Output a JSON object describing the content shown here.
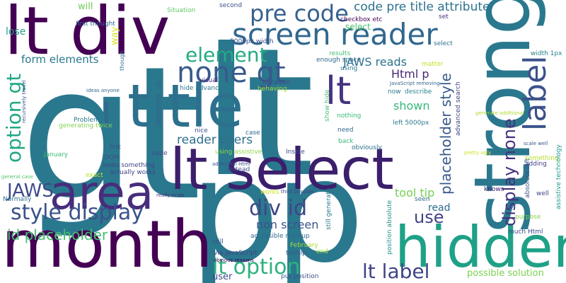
{
  "words": [
    {
      "text": "gt",
      "color": "#2a788e"
    },
    {
      "text": "lt",
      "color": "#2a788e"
    },
    {
      "text": "p",
      "color": "#2a788e"
    },
    {
      "text": "p",
      "color": "#2a788e"
    },
    {
      "text": "lt div",
      "color": "#440154"
    },
    {
      "text": "strong",
      "color": "#2a788e"
    },
    {
      "text": "title",
      "color": "#2d708e"
    },
    {
      "text": "lt select",
      "color": "#3b1f6b"
    },
    {
      "text": "month",
      "color": "#440154"
    },
    {
      "text": "hidden",
      "color": "#1fa187"
    },
    {
      "text": "area",
      "color": "#472d7b"
    },
    {
      "text": "screen reader",
      "color": "#31688e"
    },
    {
      "text": "label",
      "color": "#3b528b"
    },
    {
      "text": "none gt",
      "color": "#38598c"
    },
    {
      "text": "pre code",
      "color": "#35608d"
    },
    {
      "text": "code pre title attribute",
      "color": "#2c718e"
    },
    {
      "text": "lt",
      "color": "#46337e"
    },
    {
      "text": "display none",
      "color": "#46327e"
    },
    {
      "text": "element",
      "color": "#25ab82"
    },
    {
      "text": "option gt",
      "color": "#22a884"
    },
    {
      "text": "style display",
      "color": "#3b528b"
    },
    {
      "text": "JAWS",
      "color": "#3e4a89"
    },
    {
      "text": "div id",
      "color": "#3f4788"
    },
    {
      "text": "lt option",
      "color": "#2db27d"
    },
    {
      "text": "lt label",
      "color": "#414487"
    },
    {
      "text": "placeholder style",
      "color": "#38598c"
    },
    {
      "text": "use",
      "color": "#414487"
    },
    {
      "text": "id placeholder",
      "color": "#44bf70"
    },
    {
      "text": "form elements",
      "color": "#2a788e"
    },
    {
      "text": "Html p",
      "color": "#482878"
    },
    {
      "text": "JAWS reads",
      "color": "#2c728e"
    },
    {
      "text": "reader users",
      "color": "#2e6e8e"
    },
    {
      "text": "tool tip",
      "color": "#75d054"
    },
    {
      "text": "non screen",
      "color": "#3a548c"
    },
    {
      "text": "shown",
      "color": "#35b779"
    },
    {
      "text": "read",
      "color": "#2f6b8e"
    },
    {
      "text": "possible solution",
      "color": "#7ad151"
    },
    {
      "text": "user",
      "color": "#3e4c8a"
    },
    {
      "text": "lose",
      "color": "#1fa287"
    },
    {
      "text": "way",
      "color": "#d8e219"
    },
    {
      "text": "will",
      "color": "#6ece58"
    },
    {
      "text": "select",
      "color": "#4ac16d"
    },
    {
      "text": "first thought",
      "color": "#31688e"
    },
    {
      "text": "Situation",
      "color": "#5ec962"
    },
    {
      "text": "second",
      "color": "#3b528b"
    },
    {
      "text": "checkbox etc",
      "color": "#440154"
    },
    {
      "text": "set",
      "color": "#46337e"
    },
    {
      "text": "5000px width",
      "color": "#3b528b"
    },
    {
      "text": "width 1px",
      "color": "#25838e"
    },
    {
      "text": "results",
      "color": "#42be71"
    },
    {
      "text": "select",
      "color": "#2e6f8e"
    },
    {
      "text": "enough space",
      "color": "#31688e"
    },
    {
      "text": "matter",
      "color": "#c2df23"
    },
    {
      "text": "using",
      "color": "#2a788e"
    },
    {
      "text": "behavior",
      "color": "#3e4a89"
    },
    {
      "text": "hide advanced",
      "color": "#2a768e"
    },
    {
      "text": "visual",
      "color": "#46307e"
    },
    {
      "text": "behaving",
      "color": "#a5db36"
    },
    {
      "text": "JavaScript removing",
      "color": "#32658e"
    },
    {
      "text": "now",
      "color": "#2a768e"
    },
    {
      "text": "describe",
      "color": "#26828e"
    },
    {
      "text": "advanced search",
      "color": "#414487"
    },
    {
      "text": "show hide",
      "color": "#4ac16d"
    },
    {
      "text": "nothing",
      "color": "#38b977"
    },
    {
      "text": "generate additional",
      "color": "#addc30"
    },
    {
      "text": "left 5000px",
      "color": "#2a788e"
    },
    {
      "text": "need",
      "color": "#31688e"
    },
    {
      "text": "back",
      "color": "#35b779"
    },
    {
      "text": "obviously",
      "color": "#2c718e"
    },
    {
      "text": "pretty ugly",
      "color": "#cae11f"
    },
    {
      "text": "scale well",
      "color": "#39558c"
    },
    {
      "text": "something",
      "color": "#b5de2b"
    },
    {
      "text": "adding",
      "color": "#424086"
    },
    {
      "text": "absolute left",
      "color": "#3b528b"
    },
    {
      "text": "assistive technology",
      "color": "#1f9a8a"
    },
    {
      "text": "seen",
      "color": "#2e6e8e"
    },
    {
      "text": "knows",
      "color": "#3b1c6b"
    },
    {
      "text": "well",
      "color": "#414487"
    },
    {
      "text": "purpose",
      "color": "#84d44b"
    },
    {
      "text": "much Html",
      "color": "#3e4989"
    },
    {
      "text": "third possible",
      "color": "#414487"
    },
    {
      "text": "works",
      "color": "#d2e21b"
    },
    {
      "text": "accessible markup",
      "color": "#31688e"
    },
    {
      "text": "still generate",
      "color": "#2a788e"
    },
    {
      "text": "position absolute",
      "color": "#21918c"
    },
    {
      "text": "tooltip",
      "color": "#38588c"
    },
    {
      "text": "still",
      "color": "#3b528b"
    },
    {
      "text": "end",
      "color": "#a8db34"
    },
    {
      "text": "put position",
      "color": "#3a548c"
    },
    {
      "text": "February",
      "color": "#a8db34"
    },
    {
      "text": "via JavaScript",
      "color": "#414487"
    },
    {
      "text": "obvious reasons",
      "color": "#440154"
    },
    {
      "text": "instead",
      "color": "#3d4d8a"
    },
    {
      "text": "additional Html",
      "color": "#3b528b"
    },
    {
      "text": "Inside",
      "color": "#3e4989"
    },
    {
      "text": "using assistive",
      "color": "#8fd744"
    },
    {
      "text": "case",
      "color": "#31688e"
    },
    {
      "text": "nice",
      "color": "#3b528b"
    },
    {
      "text": "code",
      "color": "#414487"
    },
    {
      "text": "DOM",
      "color": "#3b528b"
    },
    {
      "text": "link",
      "color": "#3b528b"
    },
    {
      "text": "looks something",
      "color": "#414487"
    },
    {
      "text": "actually works",
      "color": "#414487"
    },
    {
      "text": "exact",
      "color": "#bddf26"
    },
    {
      "text": "really scale",
      "color": "#46317e"
    },
    {
      "text": "January",
      "color": "#38b977"
    },
    {
      "text": "Normally",
      "color": "#2c728e"
    },
    {
      "text": "general case",
      "color": "#52c569"
    },
    {
      "text": "recursively travel",
      "color": "#3b528b"
    },
    {
      "text": "ideas anyone",
      "color": "#31688e"
    },
    {
      "text": "though",
      "color": "#2e6e8e"
    },
    {
      "text": "remove",
      "color": "#3b528b"
    },
    {
      "text": "Problem",
      "color": "#2a788e"
    },
    {
      "text": "generating twice",
      "color": "#7fd34e"
    }
  ]
}
